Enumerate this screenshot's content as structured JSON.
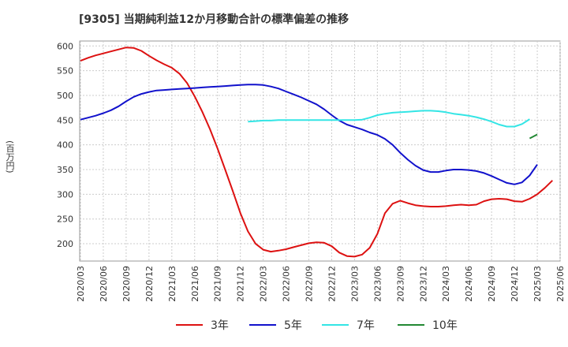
{
  "chart_data": {
    "type": "line",
    "title": "[9305]  当期純利益12か月移動合計の標準偏差の推移",
    "ylabel": "(百万円)",
    "xlabel": "",
    "ylim": [
      165,
      610
    ],
    "yticks": [
      200,
      250,
      300,
      350,
      400,
      450,
      500,
      550,
      600
    ],
    "xticks": [
      "2020/03",
      "2020/06",
      "2020/09",
      "2020/12",
      "2021/03",
      "2021/06",
      "2021/09",
      "2021/12",
      "2022/03",
      "2022/06",
      "2022/09",
      "2022/12",
      "2023/03",
      "2023/06",
      "2023/09",
      "2023/12",
      "2024/03",
      "2024/06",
      "2024/09",
      "2024/12",
      "2025/03",
      "2025/06"
    ],
    "x_months": [
      "2020/03",
      "2020/04",
      "2020/05",
      "2020/06",
      "2020/07",
      "2020/08",
      "2020/09",
      "2020/10",
      "2020/11",
      "2020/12",
      "2021/01",
      "2021/02",
      "2021/03",
      "2021/04",
      "2021/05",
      "2021/06",
      "2021/07",
      "2021/08",
      "2021/09",
      "2021/10",
      "2021/11",
      "2021/12",
      "2022/01",
      "2022/02",
      "2022/03",
      "2022/04",
      "2022/05",
      "2022/06",
      "2022/07",
      "2022/08",
      "2022/09",
      "2022/10",
      "2022/11",
      "2022/12",
      "2023/01",
      "2023/02",
      "2023/03",
      "2023/04",
      "2023/05",
      "2023/06",
      "2023/07",
      "2023/08",
      "2023/09",
      "2023/10",
      "2023/11",
      "2023/12",
      "2024/01",
      "2024/02",
      "2024/03",
      "2024/04",
      "2024/05",
      "2024/06",
      "2024/07",
      "2024/08",
      "2024/09",
      "2024/10",
      "2024/11",
      "2024/12",
      "2025/01",
      "2025/02",
      "2025/03"
    ],
    "series": [
      {
        "name": "3年",
        "color": "#dd1111",
        "start": "2020/03",
        "values": [
          570,
          576,
          581,
          585,
          589,
          593,
          597,
          596,
          590,
          580,
          571,
          563,
          556,
          544,
          525,
          498,
          467,
          432,
          393,
          350,
          307,
          262,
          225,
          200,
          188,
          184,
          186,
          189,
          193,
          197,
          201,
          203,
          202,
          195,
          182,
          175,
          174,
          178,
          192,
          220,
          262,
          281,
          287,
          282,
          278,
          276,
          275,
          275,
          276,
          278,
          279,
          278,
          279,
          286,
          290,
          291,
          290,
          286,
          285,
          291,
          300,
          313,
          328
        ]
      },
      {
        "name": "5年",
        "color": "#1111cc",
        "start": "2020/03",
        "values": [
          451,
          455,
          459,
          464,
          470,
          478,
          488,
          497,
          503,
          507,
          510,
          511,
          512,
          513,
          514,
          515,
          516,
          517,
          518,
          519,
          520,
          521,
          522,
          522,
          521,
          518,
          514,
          508,
          502,
          496,
          489,
          482,
          472,
          460,
          449,
          441,
          436,
          431,
          425,
          420,
          412,
          400,
          384,
          370,
          358,
          349,
          345,
          345,
          348,
          350,
          350,
          349,
          347,
          343,
          337,
          330,
          323,
          320,
          324,
          338,
          360
        ]
      },
      {
        "name": "7年",
        "color": "#33e5e5",
        "start": "2022/01",
        "values": [
          447,
          448,
          449,
          449,
          450,
          450,
          450,
          450,
          450,
          450,
          450,
          450,
          450,
          450,
          450,
          451,
          455,
          460,
          463,
          465,
          466,
          467,
          468,
          469,
          469,
          468,
          466,
          463,
          461,
          459,
          456,
          452,
          447,
          441,
          437,
          437,
          442,
          452
        ]
      },
      {
        "name": "10年",
        "color": "#228833",
        "start": "2025/02",
        "values": [
          413,
          421
        ]
      }
    ]
  }
}
